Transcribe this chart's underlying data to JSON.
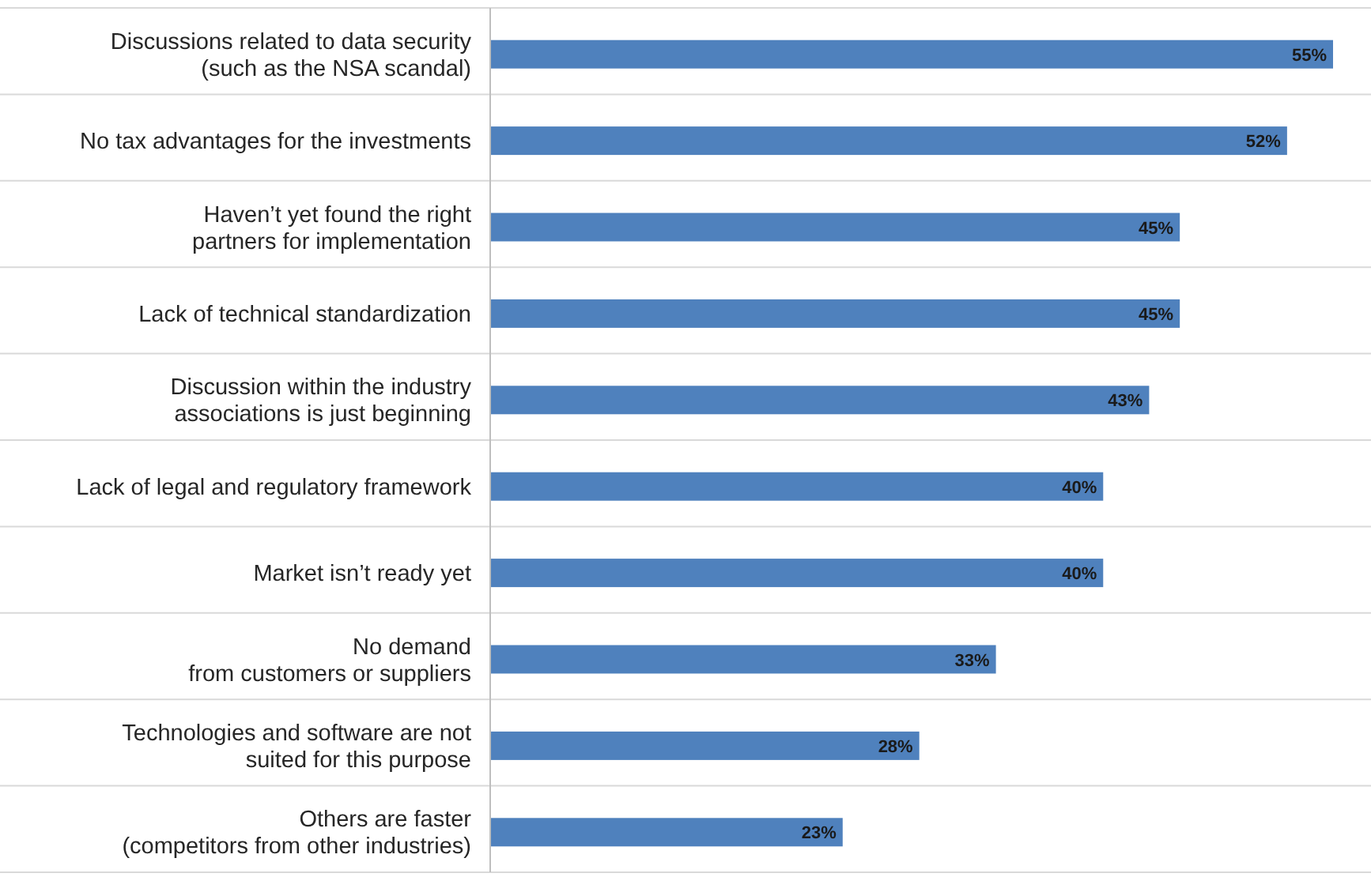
{
  "chart_data": {
    "type": "bar",
    "orientation": "horizontal",
    "grid": "y",
    "color": "#4f81bd",
    "categories": [
      "Discussions related to data security\n(such as the NSA scandal)",
      "No tax advantages for the investments",
      "Haven’t yet found the right\npartners for implementation",
      "Lack of technical standardization",
      "Discussion within the industry\nassociations is just beginning",
      "Lack of legal and regulatory framework",
      "Market isn’t ready yet",
      "No demand\nfrom customers or suppliers",
      "Technologies and software are not\nsuited for this purpose",
      "Others are faster\n(competitors from other industries)"
    ],
    "values": [
      55,
      52,
      45,
      45,
      43,
      40,
      40,
      33,
      28,
      23
    ],
    "value_labels": [
      "55%",
      "52%",
      "45%",
      "45%",
      "43%",
      "40%",
      "40%",
      "33%",
      "28%",
      "23%"
    ]
  }
}
